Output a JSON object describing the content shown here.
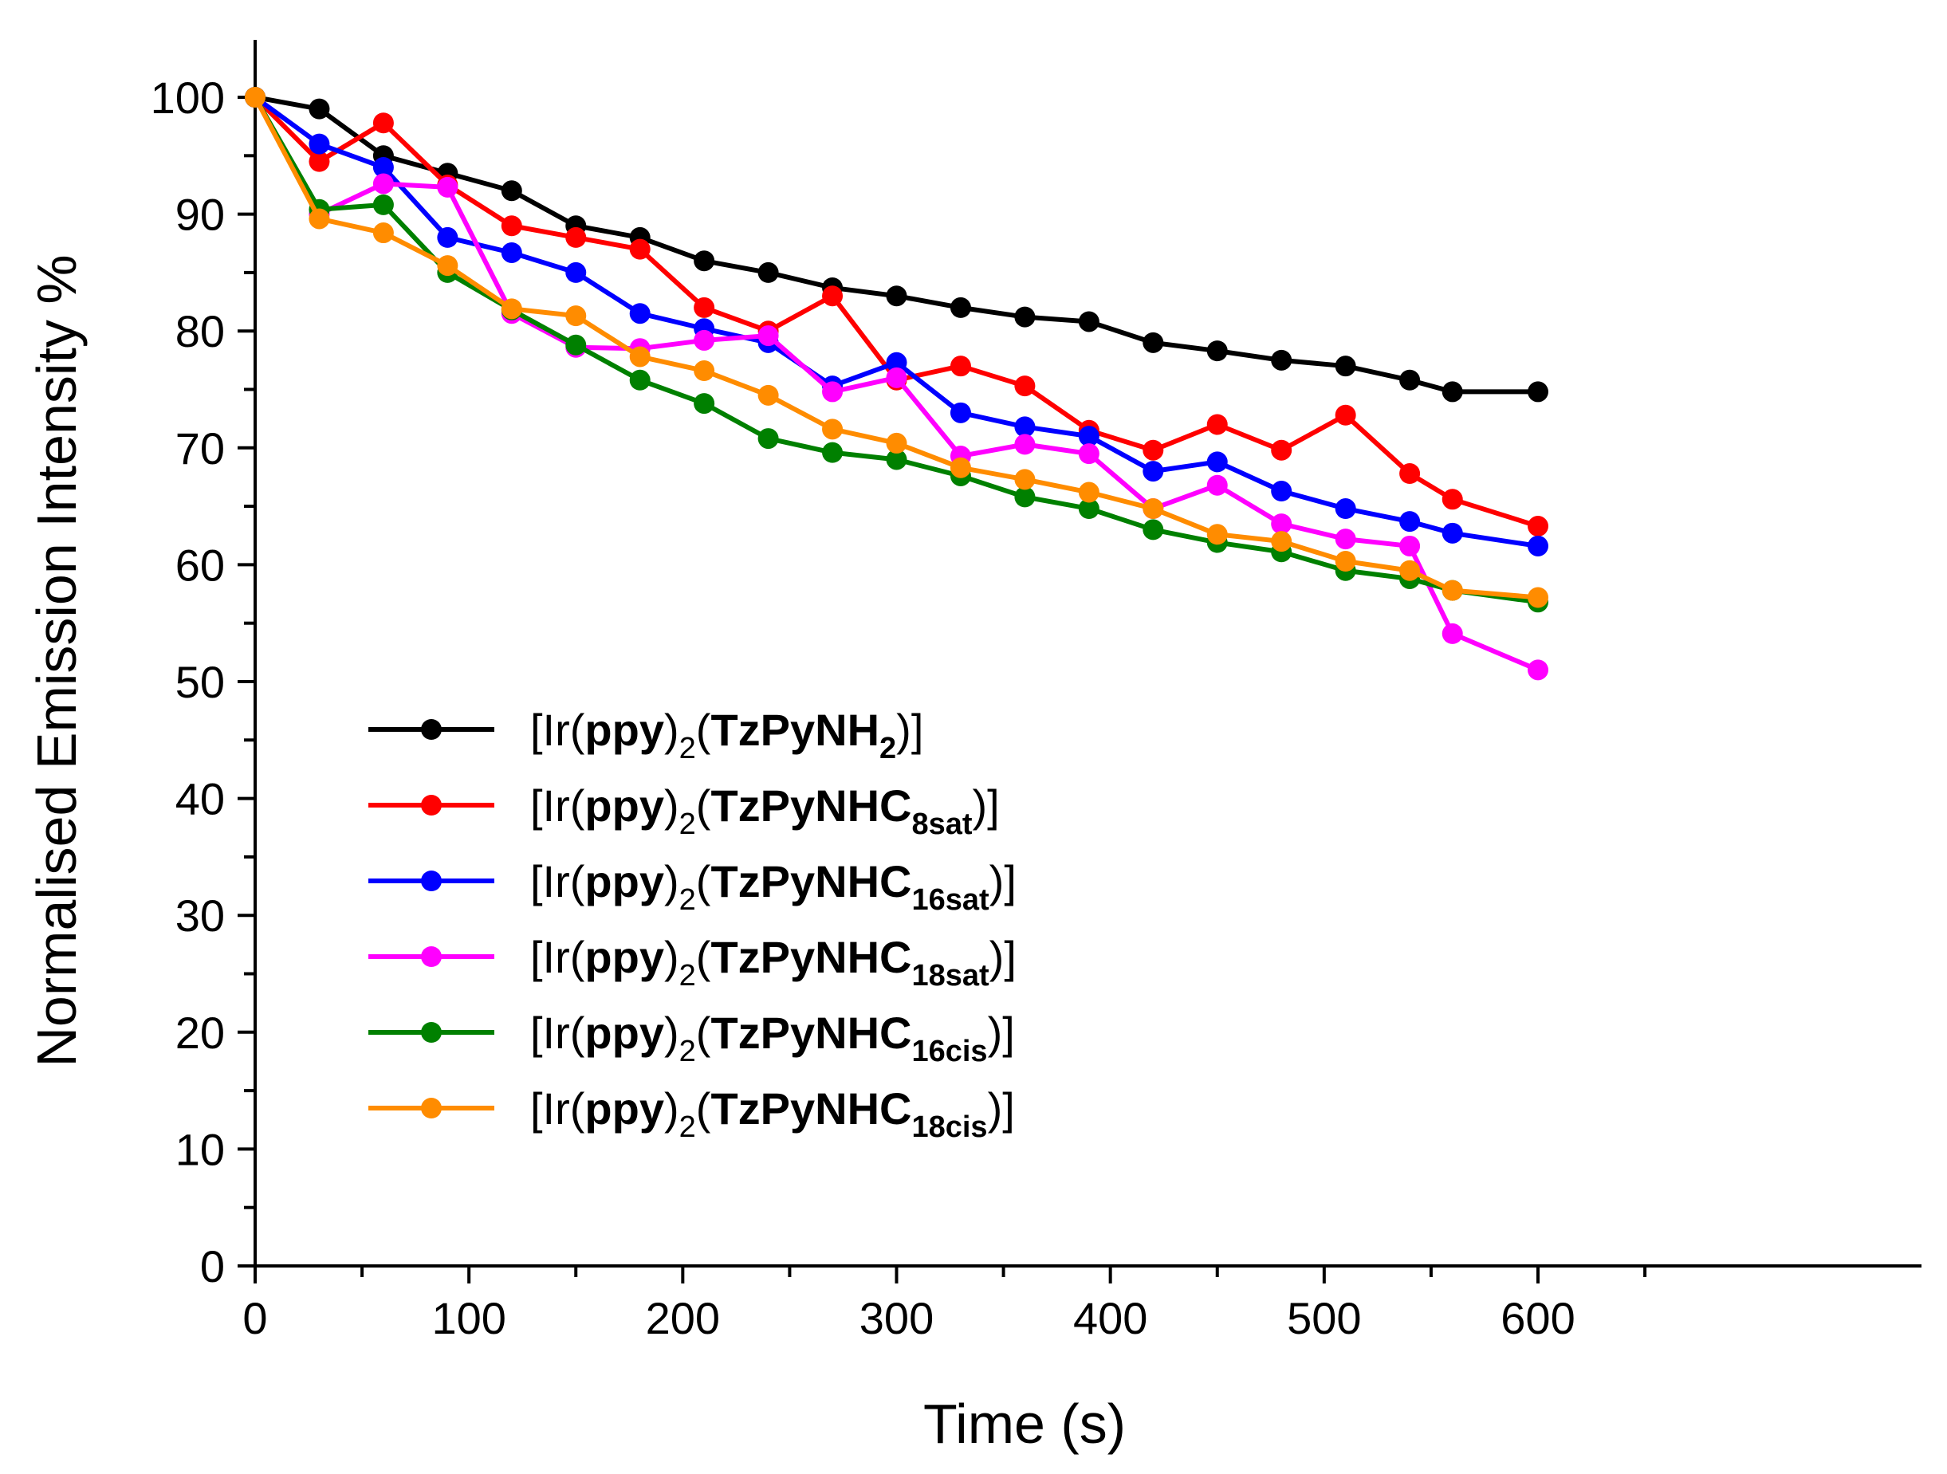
{
  "chart_data": {
    "type": "line",
    "xlabel": "Time (s)",
    "ylabel": "Normalised Emission Intensity %",
    "xlim": [
      0,
      650
    ],
    "ylim": [
      0,
      105
    ],
    "xticks": [
      0,
      100,
      200,
      300,
      400,
      500,
      600
    ],
    "yticks": [
      0,
      10,
      20,
      30,
      40,
      50,
      60,
      70,
      80,
      90,
      100
    ],
    "x": [
      0,
      30,
      60,
      90,
      120,
      150,
      180,
      210,
      240,
      270,
      300,
      330,
      360,
      390,
      420,
      450,
      480,
      510,
      540,
      560,
      600
    ],
    "legend_position": "center-left",
    "grid": false,
    "series": [
      {
        "name_parts": [
          "[Ir(",
          "ppy",
          ")",
          "2",
          "(",
          "TzPyNH",
          "2",
          ")]"
        ],
        "color": "#000000",
        "values": [
          100,
          99,
          95,
          93.5,
          92,
          89,
          88,
          86,
          85,
          83.7,
          83,
          82,
          81.2,
          80.8,
          79,
          78.3,
          77.5,
          77,
          75.8,
          74.8,
          74.8
        ]
      },
      {
        "name_parts": [
          "[Ir(",
          "ppy",
          ")",
          "2",
          "(",
          "TzPyNHC",
          "8sat",
          ")]"
        ],
        "color": "#ff0000",
        "values": [
          100,
          94.5,
          97.8,
          92.5,
          89,
          88,
          87,
          82,
          80,
          83,
          75.8,
          77,
          75.3,
          71.5,
          69.8,
          72,
          69.8,
          72.8,
          67.8,
          65.6,
          63.3
        ]
      },
      {
        "name_parts": [
          "[Ir(",
          "ppy",
          ")",
          "2",
          "(",
          "TzPyNHC",
          "16sat",
          ")]"
        ],
        "color": "#0000ff",
        "values": [
          100,
          96,
          94,
          88,
          86.7,
          85,
          81.5,
          80.2,
          79,
          75.3,
          77.3,
          73,
          71.8,
          71,
          68,
          68.8,
          66.3,
          64.8,
          63.7,
          62.7,
          61.6
        ]
      },
      {
        "name_parts": [
          "[Ir(",
          "ppy",
          ")",
          "2",
          "(",
          "TzPyNHC",
          "18sat",
          ")]"
        ],
        "color": "#ff00ff",
        "values": [
          100,
          90,
          92.6,
          92.3,
          81.5,
          78.6,
          78.5,
          79.2,
          79.6,
          74.8,
          76,
          69.3,
          70.3,
          69.5,
          64.8,
          66.8,
          63.5,
          62.2,
          61.6,
          54.1,
          51
        ]
      },
      {
        "name_parts": [
          "[Ir(",
          "ppy",
          ")",
          "2",
          "(",
          "TzPyNHC",
          "16cis",
          ")]"
        ],
        "color": "#008000",
        "values": [
          100,
          90.4,
          90.8,
          85,
          81.8,
          78.8,
          75.8,
          73.8,
          70.8,
          69.6,
          69,
          67.6,
          65.8,
          64.8,
          63,
          61.9,
          61.1,
          59.5,
          58.8,
          57.8,
          56.8
        ]
      },
      {
        "name_parts": [
          "[Ir(",
          "ppy",
          ")",
          "2",
          "(",
          "TzPyNHC",
          "18cis",
          ")]"
        ],
        "color": "#ff8c00",
        "values": [
          100,
          89.6,
          88.4,
          85.6,
          81.9,
          81.3,
          77.8,
          76.6,
          74.5,
          71.6,
          70.4,
          68.3,
          67.3,
          66.2,
          64.8,
          62.6,
          62,
          60.3,
          59.5,
          57.8,
          57.2
        ]
      }
    ]
  }
}
